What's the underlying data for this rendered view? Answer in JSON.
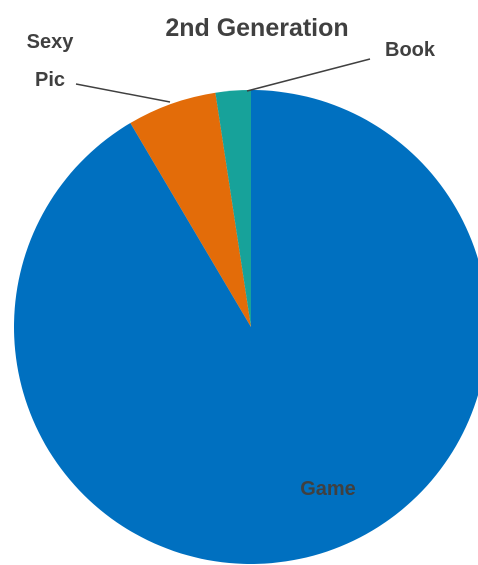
{
  "chart_data": {
    "type": "pie",
    "title": "2nd Generation",
    "categories": [
      "Game",
      "Sexy Pic",
      "Book"
    ],
    "values": [
      91.5,
      6.1,
      2.4
    ],
    "colors": [
      "#0070c0",
      "#e36c09",
      "#17a29a"
    ],
    "label_lines": [
      [
        "Game"
      ],
      [
        "Sexy",
        "Pic"
      ],
      [
        "Book"
      ]
    ],
    "legend": "none"
  }
}
